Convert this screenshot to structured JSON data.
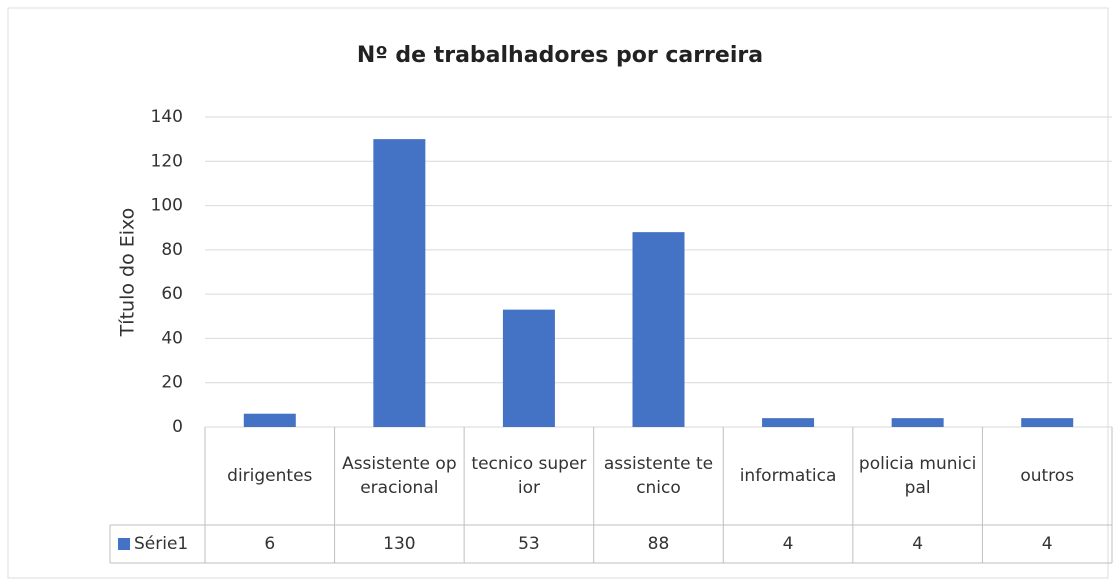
{
  "chart_data": {
    "type": "bar",
    "title": "Nº de trabalhadores por carreira",
    "y_label": "Título do Eixo",
    "categories": [
      "dirigentes",
      "Assistente operacional",
      "tecnico superior",
      "assistente tecnico",
      "informatica",
      "policia municipal",
      "outros"
    ],
    "series": [
      {
        "name": "Série1",
        "color": "#4472c4",
        "values": [
          6,
          130,
          53,
          88,
          4,
          4,
          4
        ]
      }
    ],
    "ylim": [
      0,
      140
    ],
    "yticks": [
      0,
      20,
      40,
      60,
      80,
      100,
      120,
      140
    ],
    "grid": true
  }
}
